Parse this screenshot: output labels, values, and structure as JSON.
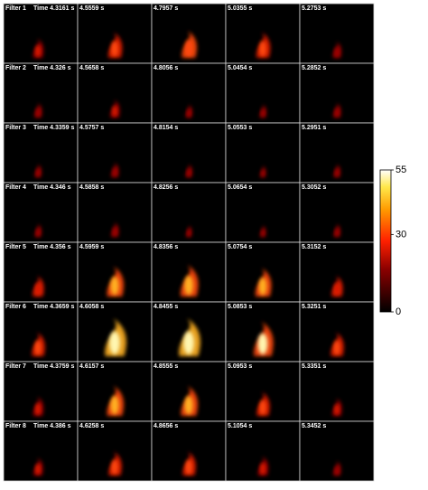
{
  "rows": [
    {
      "filter": "Filter 1",
      "times": [
        "Time 4.3161 s",
        "4.5559 s",
        "4.7957 s",
        "5.0355 s",
        "5.2753 s"
      ]
    },
    {
      "filter": "Filter 2",
      "times": [
        "Time 4.326 s",
        "4.5658 s",
        "4.8056 s",
        "5.0454 s",
        "5.2852 s"
      ]
    },
    {
      "filter": "Filter 3",
      "times": [
        "Time 4.3359 s",
        "4.5757 s",
        "4.8154 s",
        "5.0553 s",
        "5.2951 s"
      ]
    },
    {
      "filter": "Filter 4",
      "times": [
        "Time 4.346 s",
        "4.5858 s",
        "4.8256 s",
        "5.0654 s",
        "5.3052 s"
      ]
    },
    {
      "filter": "Filter 5",
      "times": [
        "Time 4.356 s",
        "4.5959 s",
        "4.8356 s",
        "5.0754 s",
        "5.3152 s"
      ]
    },
    {
      "filter": "Filter 6",
      "times": [
        "Time 4.3659 s",
        "4.6058 s",
        "4.8455 s",
        "5.0853 s",
        "5.3251 s"
      ]
    },
    {
      "filter": "Filter 7",
      "times": [
        "Time 4.3759 s",
        "4.6157 s",
        "4.8555 s",
        "5.0953 s",
        "5.3351 s"
      ]
    },
    {
      "filter": "Filter 8",
      "times": [
        "Time 4.386 s",
        "4.6258 s",
        "4.8656 s",
        "5.1054 s",
        "5.3452 s"
      ]
    }
  ],
  "colorbar": {
    "lim": [
      0,
      55
    ],
    "ticks": [
      0,
      30,
      55
    ]
  }
}
